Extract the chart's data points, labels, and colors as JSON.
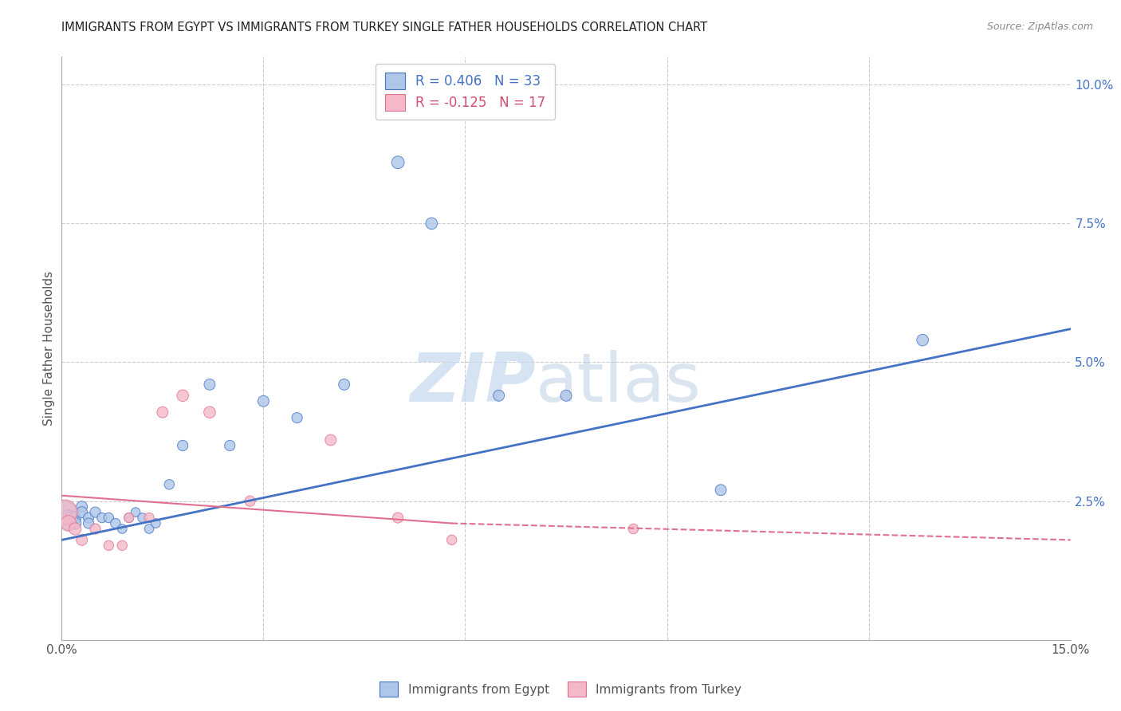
{
  "title": "IMMIGRANTS FROM EGYPT VS IMMIGRANTS FROM TURKEY SINGLE FATHER HOUSEHOLDS CORRELATION CHART",
  "source": "Source: ZipAtlas.com",
  "ylabel": "Single Father Households",
  "xlim": [
    0.0,
    0.15
  ],
  "ylim": [
    0.0,
    0.105
  ],
  "yticks_right": [
    0.025,
    0.05,
    0.075,
    0.1
  ],
  "ytick_labels_right": [
    "2.5%",
    "5.0%",
    "7.5%",
    "10.0%"
  ],
  "xticks_grid": [
    0.03,
    0.06,
    0.09,
    0.12
  ],
  "legend_label1": "R = 0.406   N = 33",
  "legend_label2": "R = -0.125   N = 17",
  "watermark_zip": "ZIP",
  "watermark_atlas": "atlas",
  "color_egypt": "#aec6e8",
  "color_turkey": "#f4b8c8",
  "color_line_egypt": "#4472c4",
  "color_line_turkey": "#e07090",
  "egypt_x": [
    0.0005,
    0.001,
    0.001,
    0.0015,
    0.002,
    0.002,
    0.003,
    0.003,
    0.004,
    0.004,
    0.005,
    0.006,
    0.007,
    0.008,
    0.009,
    0.01,
    0.011,
    0.012,
    0.013,
    0.014,
    0.016,
    0.018,
    0.022,
    0.025,
    0.03,
    0.035,
    0.042,
    0.05,
    0.055,
    0.065,
    0.075,
    0.098,
    0.128
  ],
  "egypt_y": [
    0.023,
    0.022,
    0.021,
    0.022,
    0.022,
    0.021,
    0.024,
    0.023,
    0.022,
    0.021,
    0.023,
    0.022,
    0.022,
    0.021,
    0.02,
    0.022,
    0.023,
    0.022,
    0.02,
    0.021,
    0.028,
    0.035,
    0.046,
    0.035,
    0.043,
    0.04,
    0.046,
    0.086,
    0.075,
    0.044,
    0.044,
    0.027,
    0.054
  ],
  "egypt_sizes": [
    400,
    200,
    150,
    150,
    120,
    120,
    100,
    100,
    90,
    90,
    90,
    80,
    80,
    80,
    70,
    70,
    70,
    70,
    70,
    70,
    80,
    90,
    100,
    90,
    100,
    90,
    100,
    130,
    110,
    100,
    100,
    100,
    110
  ],
  "turkey_x": [
    0.0005,
    0.001,
    0.002,
    0.003,
    0.005,
    0.007,
    0.009,
    0.01,
    0.013,
    0.015,
    0.018,
    0.022,
    0.028,
    0.04,
    0.05,
    0.058,
    0.085
  ],
  "turkey_y": [
    0.023,
    0.021,
    0.02,
    0.018,
    0.02,
    0.017,
    0.017,
    0.022,
    0.022,
    0.041,
    0.044,
    0.041,
    0.025,
    0.036,
    0.022,
    0.018,
    0.02
  ],
  "turkey_sizes": [
    500,
    200,
    120,
    100,
    90,
    80,
    80,
    80,
    80,
    100,
    110,
    110,
    90,
    100,
    90,
    80,
    80
  ],
  "egypt_line_x": [
    0.0,
    0.15
  ],
  "egypt_line_y": [
    0.018,
    0.056
  ],
  "turkey_line_x": [
    0.0,
    0.15
  ],
  "turkey_line_y": [
    0.026,
    0.018
  ]
}
